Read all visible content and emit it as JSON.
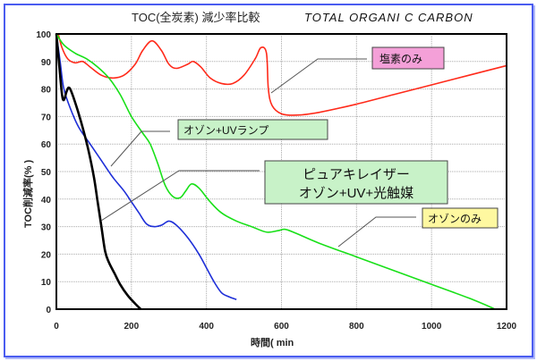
{
  "chart_data": {
    "type": "line",
    "title": "TOC(全炭素) 減少率比較",
    "subtitle": "TOTAL ORGANI C CARBON",
    "xlabel": "時間(  min",
    "ylabel": "TOC削減率(%  )",
    "xlim": [
      0,
      1200
    ],
    "ylim": [
      0,
      100
    ],
    "xticks": [
      "0",
      "200",
      "400",
      "600",
      "800",
      "1000",
      "1200"
    ],
    "yticks": [
      "0",
      "10",
      "20",
      "30",
      "40",
      "50",
      "60",
      "70",
      "80",
      "90",
      "100"
    ],
    "grid": true,
    "series": [
      {
        "name": "塩素のみ",
        "color": "#ff2a1a",
        "label_bg": "#f4a0d8",
        "points": [
          [
            5,
            100
          ],
          [
            15,
            95
          ],
          [
            30,
            91
          ],
          [
            50,
            89.5
          ],
          [
            70,
            90
          ],
          [
            90,
            88
          ],
          [
            120,
            85
          ],
          [
            150,
            84
          ],
          [
            180,
            85
          ],
          [
            210,
            89
          ],
          [
            230,
            94
          ],
          [
            255,
            97.5
          ],
          [
            280,
            94
          ],
          [
            300,
            89
          ],
          [
            320,
            87.5
          ],
          [
            350,
            89
          ],
          [
            365,
            90
          ],
          [
            385,
            88
          ],
          [
            410,
            84
          ],
          [
            440,
            82
          ],
          [
            470,
            82
          ],
          [
            500,
            85
          ],
          [
            530,
            91
          ],
          [
            545,
            95
          ],
          [
            560,
            93
          ],
          [
            565,
            80
          ],
          [
            575,
            74
          ],
          [
            600,
            71
          ],
          [
            640,
            70.5
          ],
          [
            700,
            71.5
          ],
          [
            800,
            74.5
          ],
          [
            900,
            78
          ],
          [
            1000,
            81.5
          ],
          [
            1100,
            85
          ],
          [
            1200,
            88.5
          ]
        ]
      },
      {
        "name": "オゾン+UVランプ",
        "color": "#1e2fd8",
        "label_bg": "#c8f2c8",
        "points": [
          [
            0,
            100
          ],
          [
            10,
            90
          ],
          [
            20,
            80
          ],
          [
            40,
            72
          ],
          [
            60,
            66
          ],
          [
            90,
            60
          ],
          [
            120,
            54
          ],
          [
            150,
            48
          ],
          [
            180,
            43
          ],
          [
            200,
            39
          ],
          [
            220,
            35
          ],
          [
            240,
            31
          ],
          [
            260,
            30
          ],
          [
            280,
            30.5
          ],
          [
            300,
            32
          ],
          [
            320,
            30.5
          ],
          [
            350,
            26
          ],
          [
            380,
            20
          ],
          [
            400,
            15
          ],
          [
            420,
            10
          ],
          [
            440,
            6
          ],
          [
            460,
            4.5
          ],
          [
            480,
            3.5
          ]
        ]
      },
      {
        "name": "ピュアキレイザー オゾン+UV+光触媒",
        "color": "#000000",
        "label_bg": "#c8f2c8",
        "points": [
          [
            0,
            100
          ],
          [
            8,
            88
          ],
          [
            15,
            78
          ],
          [
            20,
            76
          ],
          [
            27,
            79
          ],
          [
            33,
            80.5
          ],
          [
            40,
            79
          ],
          [
            55,
            73
          ],
          [
            70,
            66
          ],
          [
            85,
            58
          ],
          [
            100,
            48
          ],
          [
            110,
            39
          ],
          [
            120,
            30
          ],
          [
            130,
            21
          ],
          [
            140,
            17
          ],
          [
            155,
            13
          ],
          [
            170,
            9
          ],
          [
            190,
            5
          ],
          [
            210,
            2
          ],
          [
            225,
            0
          ]
        ]
      },
      {
        "name": "オゾンのみ",
        "color": "#18e018",
        "label_bg": "#fef8a0",
        "points": [
          [
            0,
            100
          ],
          [
            20,
            96
          ],
          [
            50,
            93
          ],
          [
            80,
            91
          ],
          [
            110,
            88
          ],
          [
            140,
            84
          ],
          [
            170,
            78
          ],
          [
            200,
            70
          ],
          [
            230,
            64
          ],
          [
            250,
            60
          ],
          [
            270,
            53
          ],
          [
            290,
            45
          ],
          [
            310,
            41
          ],
          [
            330,
            40.5
          ],
          [
            345,
            43
          ],
          [
            360,
            45.5
          ],
          [
            380,
            44
          ],
          [
            410,
            39
          ],
          [
            440,
            35
          ],
          [
            480,
            32
          ],
          [
            520,
            30
          ],
          [
            560,
            28
          ],
          [
            590,
            28.5
          ],
          [
            610,
            29
          ],
          [
            640,
            27.5
          ],
          [
            700,
            24
          ],
          [
            800,
            19
          ],
          [
            900,
            14
          ],
          [
            1000,
            9
          ],
          [
            1100,
            4
          ],
          [
            1170,
            0
          ]
        ]
      }
    ]
  }
}
